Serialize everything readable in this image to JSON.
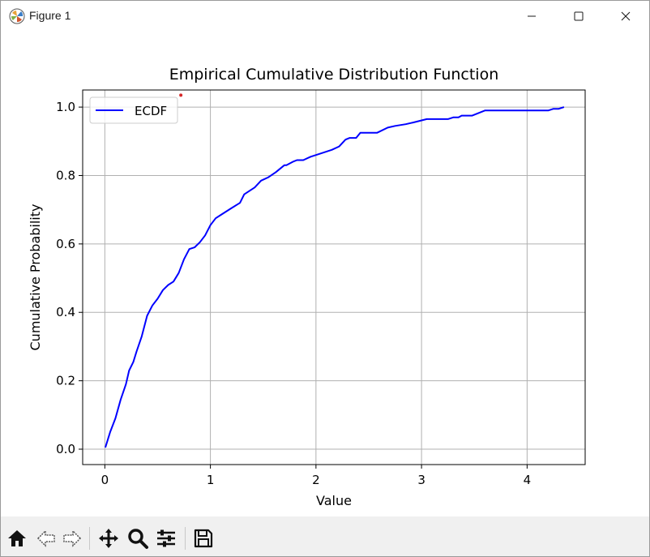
{
  "window": {
    "title": "Figure 1",
    "controls": [
      "minimize",
      "maximize",
      "close"
    ]
  },
  "toolbar": {
    "buttons": [
      {
        "name": "home-icon",
        "label": "Home"
      },
      {
        "name": "back-icon",
        "label": "Back"
      },
      {
        "name": "forward-icon",
        "label": "Forward"
      },
      {
        "name": "pan-icon",
        "label": "Pan"
      },
      {
        "name": "zoom-icon",
        "label": "Zoom"
      },
      {
        "name": "configure-subplots-icon",
        "label": "Configure subplots"
      },
      {
        "name": "save-icon",
        "label": "Save"
      }
    ]
  },
  "chart_data": {
    "type": "line",
    "title": "Empirical Cumulative Distribution Function",
    "xlabel": "Value",
    "ylabel": "Cumulative Probability",
    "xlim": [
      -0.21,
      4.55
    ],
    "ylim": [
      -0.045,
      1.05
    ],
    "xticks": [
      0,
      1,
      2,
      3,
      4
    ],
    "yticks": [
      0.0,
      0.2,
      0.4,
      0.6,
      0.8,
      1.0
    ],
    "xtick_labels": [
      "0",
      "1",
      "2",
      "3",
      "4"
    ],
    "ytick_labels": [
      "0.0",
      "0.2",
      "0.4",
      "0.6",
      "0.8",
      "1.0"
    ],
    "grid": true,
    "legend": "top-left",
    "series": [
      {
        "name": "ECDF",
        "color": "#0000ff",
        "x": [
          0.005,
          0.05,
          0.1,
          0.15,
          0.2,
          0.23,
          0.27,
          0.3,
          0.35,
          0.4,
          0.45,
          0.5,
          0.55,
          0.6,
          0.65,
          0.7,
          0.75,
          0.8,
          0.85,
          0.9,
          0.95,
          1.0,
          1.05,
          1.1,
          1.2,
          1.28,
          1.32,
          1.42,
          1.48,
          1.55,
          1.62,
          1.7,
          1.72,
          1.78,
          1.82,
          1.88,
          1.95,
          2.0,
          2.1,
          2.15,
          2.22,
          2.28,
          2.32,
          2.38,
          2.42,
          2.58,
          2.68,
          2.75,
          2.85,
          2.92,
          3.05,
          3.25,
          3.3,
          3.35,
          3.38,
          3.48,
          3.6,
          3.7,
          4.0,
          4.2,
          4.25,
          4.3,
          4.35
        ],
        "y": [
          0.005,
          0.05,
          0.09,
          0.145,
          0.19,
          0.23,
          0.255,
          0.285,
          0.33,
          0.39,
          0.42,
          0.44,
          0.465,
          0.48,
          0.49,
          0.515,
          0.555,
          0.585,
          0.59,
          0.605,
          0.625,
          0.655,
          0.675,
          0.685,
          0.705,
          0.72,
          0.745,
          0.765,
          0.785,
          0.795,
          0.81,
          0.83,
          0.83,
          0.84,
          0.845,
          0.845,
          0.855,
          0.86,
          0.87,
          0.875,
          0.885,
          0.905,
          0.91,
          0.91,
          0.925,
          0.925,
          0.94,
          0.945,
          0.95,
          0.955,
          0.965,
          0.965,
          0.97,
          0.97,
          0.975,
          0.975,
          0.99,
          0.99,
          0.99,
          0.99,
          0.995,
          0.995,
          1.0
        ]
      }
    ],
    "annotations": [
      {
        "type": "point",
        "x": 0.72,
        "y": 1.035,
        "color": "#d62728"
      }
    ]
  }
}
